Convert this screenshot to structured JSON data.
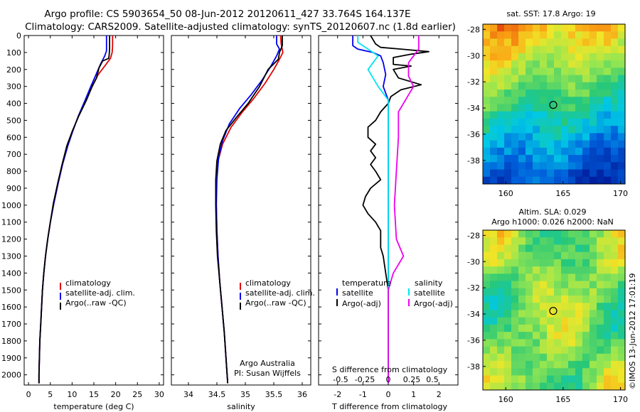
{
  "header": {
    "line1": "Argo profile: CS 5903654_50 08-Jun-2012 20120611_427 33.764S 164.137E",
    "line2": "Climatology: CARS2009. Satellite-adjusted climatology: synTS_20120607.nc (1.8d earlier)"
  },
  "colors": {
    "climatology": "#e00000",
    "satellite": "#0000ee",
    "argo": "#000000",
    "sat_salinity": "#00e5ee",
    "argo_salinity": "#ee00ee"
  },
  "chart_data": [
    {
      "type": "line",
      "name": "temperature-profile",
      "xlabel": "temperature (deg C)",
      "ylabel": "",
      "xlim": [
        -1,
        31
      ],
      "ylim": [
        2060,
        0
      ],
      "xticks": [
        0,
        5,
        10,
        15,
        20,
        25,
        30
      ],
      "yticks": [
        0,
        100,
        200,
        300,
        400,
        500,
        600,
        700,
        800,
        900,
        1000,
        1100,
        1200,
        1300,
        1400,
        1500,
        1600,
        1700,
        1800,
        1900,
        2000
      ],
      "legend": [
        "climatology",
        "satellite-adj. clim.",
        "Argo(..raw -QC)"
      ],
      "series": [
        {
          "name": "climatology",
          "points": [
            [
              19.3,
              0
            ],
            [
              19.3,
              60
            ],
            [
              19.2,
              100
            ],
            [
              18.8,
              135
            ],
            [
              17.5,
              180
            ],
            [
              16,
              230
            ],
            [
              14.6,
              300
            ],
            [
              13.2,
              380
            ],
            [
              11.5,
              470
            ],
            [
              10.2,
              560
            ],
            [
              9,
              650
            ],
            [
              7.8,
              760
            ],
            [
              6.8,
              870
            ],
            [
              5.8,
              990
            ],
            [
              5,
              1100
            ],
            [
              4.4,
              1200
            ],
            [
              3.9,
              1300
            ],
            [
              3.5,
              1400
            ],
            [
              3.2,
              1500
            ],
            [
              3,
              1600
            ],
            [
              2.8,
              1700
            ],
            [
              2.6,
              1800
            ],
            [
              2.5,
              1900
            ],
            [
              2.4,
              2000
            ],
            [
              2.4,
              2050
            ]
          ]
        },
        {
          "name": "satellite-adj. clim.",
          "points": [
            [
              17.9,
              0
            ],
            [
              17.9,
              60
            ],
            [
              17.9,
              90
            ],
            [
              17.5,
              120
            ],
            [
              16.5,
              170
            ],
            [
              15.5,
              230
            ],
            [
              14.3,
              300
            ],
            [
              13,
              380
            ],
            [
              11.5,
              470
            ],
            [
              10.2,
              560
            ],
            [
              9,
              650
            ],
            [
              7.8,
              760
            ],
            [
              6.8,
              870
            ],
            [
              5.8,
              990
            ],
            [
              5,
              1100
            ],
            [
              4.4,
              1200
            ],
            [
              3.9,
              1300
            ],
            [
              3.5,
              1400
            ],
            [
              3.2,
              1500
            ],
            [
              3,
              1600
            ],
            [
              2.8,
              1700
            ],
            [
              2.6,
              1800
            ],
            [
              2.5,
              1900
            ],
            [
              2.4,
              2000
            ],
            [
              2.4,
              2050
            ]
          ]
        },
        {
          "name": "Argo(..raw -QC)",
          "points": [
            [
              18.6,
              0
            ],
            [
              18.6,
              80
            ],
            [
              18.5,
              120
            ],
            [
              18.4,
              135
            ],
            [
              17,
              150
            ],
            [
              16.2,
              190
            ],
            [
              15.6,
              250
            ],
            [
              14.6,
              300
            ],
            [
              13.3,
              380
            ],
            [
              11.6,
              470
            ],
            [
              10.1,
              560
            ],
            [
              8.8,
              650
            ],
            [
              7.7,
              760
            ],
            [
              6.7,
              870
            ],
            [
              5.7,
              990
            ],
            [
              5,
              1100
            ],
            [
              4.4,
              1200
            ],
            [
              3.9,
              1300
            ],
            [
              3.5,
              1400
            ],
            [
              3.2,
              1500
            ],
            [
              3,
              1600
            ],
            [
              2.8,
              1700
            ],
            [
              2.6,
              1800
            ],
            [
              2.5,
              1900
            ],
            [
              2.4,
              2000
            ],
            [
              2.4,
              2050
            ]
          ]
        }
      ]
    },
    {
      "type": "line",
      "name": "salinity-profile",
      "xlabel": "salinity",
      "xlim": [
        33.7,
        36.15
      ],
      "ylim": [
        2060,
        0
      ],
      "xticks": [
        34,
        34.5,
        35,
        35.5,
        36
      ],
      "legend": [
        "climatology",
        "satellite-adj. clim.",
        "Argo(..raw -QC)"
      ],
      "annotation": [
        "Argo Australia",
        "PI: Susan Wijffels"
      ],
      "series": [
        {
          "name": "climatology",
          "points": [
            [
              35.62,
              0
            ],
            [
              35.63,
              50
            ],
            [
              35.66,
              100
            ],
            [
              35.6,
              140
            ],
            [
              35.5,
              200
            ],
            [
              35.35,
              280
            ],
            [
              35.15,
              370
            ],
            [
              34.95,
              450
            ],
            [
              34.75,
              540
            ],
            [
              34.6,
              640
            ],
            [
              34.52,
              740
            ],
            [
              34.49,
              850
            ],
            [
              34.49,
              1000
            ],
            [
              34.5,
              1150
            ],
            [
              34.52,
              1300
            ],
            [
              34.55,
              1450
            ],
            [
              34.59,
              1600
            ],
            [
              34.63,
              1750
            ],
            [
              34.66,
              1900
            ],
            [
              34.68,
              2000
            ],
            [
              34.69,
              2050
            ]
          ]
        },
        {
          "name": "satellite-adj. clim.",
          "points": [
            [
              35.55,
              0
            ],
            [
              35.55,
              50
            ],
            [
              35.6,
              80
            ],
            [
              35.55,
              120
            ],
            [
              35.45,
              180
            ],
            [
              35.3,
              260
            ],
            [
              35.1,
              350
            ],
            [
              34.9,
              430
            ],
            [
              34.72,
              520
            ],
            [
              34.6,
              620
            ],
            [
              34.53,
              720
            ],
            [
              34.5,
              850
            ],
            [
              34.49,
              1000
            ],
            [
              34.5,
              1150
            ],
            [
              34.52,
              1300
            ],
            [
              34.55,
              1450
            ],
            [
              34.59,
              1600
            ],
            [
              34.63,
              1750
            ],
            [
              34.66,
              1900
            ],
            [
              34.68,
              2000
            ],
            [
              34.69,
              2050
            ]
          ]
        },
        {
          "name": "Argo(..raw -QC)",
          "points": [
            [
              35.65,
              0
            ],
            [
              35.65,
              60
            ],
            [
              35.6,
              100
            ],
            [
              35.58,
              140
            ],
            [
              35.4,
              200
            ],
            [
              35.25,
              300
            ],
            [
              35.05,
              400
            ],
            [
              34.85,
              480
            ],
            [
              34.66,
              560
            ],
            [
              34.56,
              640
            ],
            [
              34.5,
              740
            ],
            [
              34.48,
              850
            ],
            [
              34.48,
              1000
            ],
            [
              34.49,
              1150
            ],
            [
              34.51,
              1300
            ],
            [
              34.55,
              1450
            ],
            [
              34.59,
              1600
            ],
            [
              34.63,
              1750
            ],
            [
              34.66,
              1900
            ],
            [
              34.68,
              2000
            ],
            [
              34.69,
              2050
            ]
          ]
        }
      ]
    },
    {
      "type": "line",
      "name": "difference-profile",
      "xlabel": "T difference from climatology",
      "top_label": "S difference from climatology",
      "xlim": [
        -2.75,
        2.75
      ],
      "ylim": [
        2060,
        0
      ],
      "xticks": [
        -2,
        -1,
        0,
        1,
        2
      ],
      "top_ticks": [
        "-0.5",
        "-0.25",
        "0",
        "0.25",
        "0.5"
      ],
      "legend_temperature": [
        "temperature",
        "satellite",
        "Argo(-adj)"
      ],
      "legend_salinity": [
        "salinity",
        "satellite",
        "Argo(-adj)"
      ],
      "series": [
        {
          "name": "T satellite",
          "points": [
            [
              -1.4,
              0
            ],
            [
              -1.4,
              30
            ],
            [
              -1.4,
              60
            ],
            [
              -1.2,
              80
            ],
            [
              -0.6,
              100
            ],
            [
              -0.3,
              120
            ],
            [
              -0.2,
              160
            ],
            [
              -0.1,
              230
            ],
            [
              -0.2,
              300
            ],
            [
              0,
              380
            ],
            [
              0,
              500
            ],
            [
              0,
              800
            ],
            [
              0,
              1200
            ],
            [
              0,
              1600
            ],
            [
              0,
              2050
            ]
          ]
        },
        {
          "name": "T Argo(-adj)",
          "points": [
            [
              -0.7,
              0
            ],
            [
              -0.5,
              50
            ],
            [
              -0.3,
              70
            ],
            [
              0.5,
              80
            ],
            [
              1.6,
              95
            ],
            [
              0.9,
              110
            ],
            [
              0.2,
              130
            ],
            [
              0.2,
              170
            ],
            [
              0.9,
              180
            ],
            [
              0.2,
              200
            ],
            [
              0.4,
              250
            ],
            [
              1.3,
              290
            ],
            [
              0.5,
              320
            ],
            [
              0.1,
              360
            ],
            [
              0,
              400
            ],
            [
              -0.3,
              450
            ],
            [
              -0.5,
              500
            ],
            [
              -0.8,
              540
            ],
            [
              -0.8,
              600
            ],
            [
              -0.5,
              640
            ],
            [
              -0.7,
              680
            ],
            [
              -0.5,
              720
            ],
            [
              -0.7,
              760
            ],
            [
              -0.5,
              800
            ],
            [
              -0.3,
              850
            ],
            [
              -0.7,
              900
            ],
            [
              -0.9,
              950
            ],
            [
              -1,
              1000
            ],
            [
              -0.8,
              1050
            ],
            [
              -0.5,
              1100
            ],
            [
              -0.3,
              1150
            ],
            [
              -0.3,
              1250
            ],
            [
              -0.2,
              1300
            ],
            [
              -0.1,
              1400
            ],
            [
              0,
              1500
            ],
            [
              0,
              1600
            ],
            [
              0,
              2050
            ]
          ]
        },
        {
          "name": "S satellite",
          "points": [
            [
              -0.3,
              0
            ],
            [
              -0.3,
              40
            ],
            [
              -0.2,
              80
            ],
            [
              -0.1,
              120
            ],
            [
              -0.2,
              200
            ],
            [
              -0.1,
              300
            ],
            [
              0,
              380
            ],
            [
              0,
              1600
            ],
            [
              0,
              2050
            ]
          ]
        },
        {
          "name": "S Argo(-adj)",
          "points": [
            [
              0.3,
              0
            ],
            [
              0.3,
              80
            ],
            [
              0.25,
              120
            ],
            [
              0.2,
              160
            ],
            [
              0.2,
              240
            ],
            [
              0.25,
              300
            ],
            [
              0.2,
              350
            ],
            [
              0.1,
              450
            ],
            [
              0.1,
              600
            ],
            [
              0.08,
              800
            ],
            [
              0.06,
              1000
            ],
            [
              0.08,
              1200
            ],
            [
              0.15,
              1300
            ],
            [
              0.05,
              1400
            ],
            [
              0,
              1500
            ],
            [
              0,
              2050
            ]
          ]
        }
      ]
    },
    {
      "type": "heatmap",
      "name": "sst-map",
      "title": "sat. SST: 17.8  Argo: 19",
      "xticks": [
        "160",
        "165",
        "170"
      ],
      "yticks": [
        "-28",
        "-30",
        "-32",
        "-34",
        "-36",
        "-38"
      ],
      "marker": [
        164.137,
        -33.764
      ]
    },
    {
      "type": "heatmap",
      "name": "sla-map",
      "title_line1": "Altim. SLA: 0.029",
      "title_line2": "Argo h1000: 0.026  h2000: NaN",
      "xticks": [
        "160",
        "165",
        "170"
      ],
      "yticks": [
        "-28",
        "-30",
        "-32",
        "-34",
        "-36",
        "-38"
      ],
      "marker": [
        164.137,
        -33.764
      ]
    }
  ],
  "footer": {
    "stamp": "©IMOS 13-Jun-2012 17:01:19"
  }
}
